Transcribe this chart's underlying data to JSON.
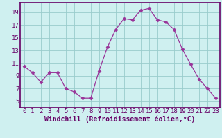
{
  "x": [
    0,
    1,
    2,
    3,
    4,
    5,
    6,
    7,
    8,
    9,
    10,
    11,
    12,
    13,
    14,
    15,
    16,
    17,
    18,
    19,
    20,
    21,
    22,
    23
  ],
  "y": [
    10.5,
    9.5,
    8.0,
    9.5,
    9.5,
    7.0,
    6.5,
    5.5,
    5.5,
    9.8,
    13.5,
    16.3,
    18.0,
    17.8,
    19.3,
    19.6,
    17.8,
    17.5,
    16.3,
    13.2,
    10.8,
    8.5,
    7.0,
    5.5
  ],
  "line_color": "#993399",
  "marker": "D",
  "marker_size": 2.5,
  "bg_color": "#cff0f0",
  "grid_color": "#99cccc",
  "axis_color": "#660066",
  "xlabel": "Windchill (Refroidissement éolien,°C)",
  "xlabel_fontsize": 7,
  "tick_fontsize": 6.5,
  "ylim": [
    4,
    20.5
  ],
  "xlim": [
    -0.5,
    23.5
  ],
  "yticks": [
    5,
    7,
    9,
    11,
    13,
    15,
    17,
    19
  ],
  "xticks": [
    0,
    1,
    2,
    3,
    4,
    5,
    6,
    7,
    8,
    9,
    10,
    11,
    12,
    13,
    14,
    15,
    16,
    17,
    18,
    19,
    20,
    21,
    22,
    23
  ]
}
